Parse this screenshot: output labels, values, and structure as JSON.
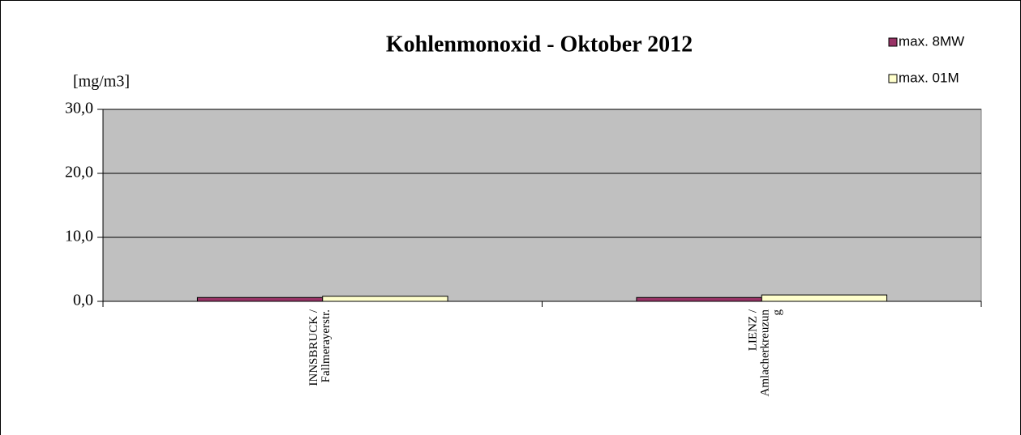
{
  "chart_data": {
    "type": "bar",
    "title": "Kohlenmonoxid - Oktober 2012",
    "y_label": "[mg/m3]",
    "categories": [
      "INNSBRUCK / Fallmerayerstr.",
      "LIENZ / Amlacherkreuzung"
    ],
    "series": [
      {
        "name": "max. 8MW",
        "color": "#993366",
        "values": [
          0.6,
          0.6
        ]
      },
      {
        "name": "max. 01M",
        "color": "#ffffcc",
        "values": [
          0.8,
          1.0
        ]
      }
    ],
    "ylim": [
      0,
      30
    ],
    "yticks": [
      {
        "value": 0,
        "label": "0,0"
      },
      {
        "value": 10,
        "label": "10,0"
      },
      {
        "value": 20,
        "label": "20,0"
      },
      {
        "value": 30,
        "label": "30,0"
      }
    ],
    "grid": true,
    "plot_background": "#c0c0c0",
    "legend": "top-right"
  }
}
